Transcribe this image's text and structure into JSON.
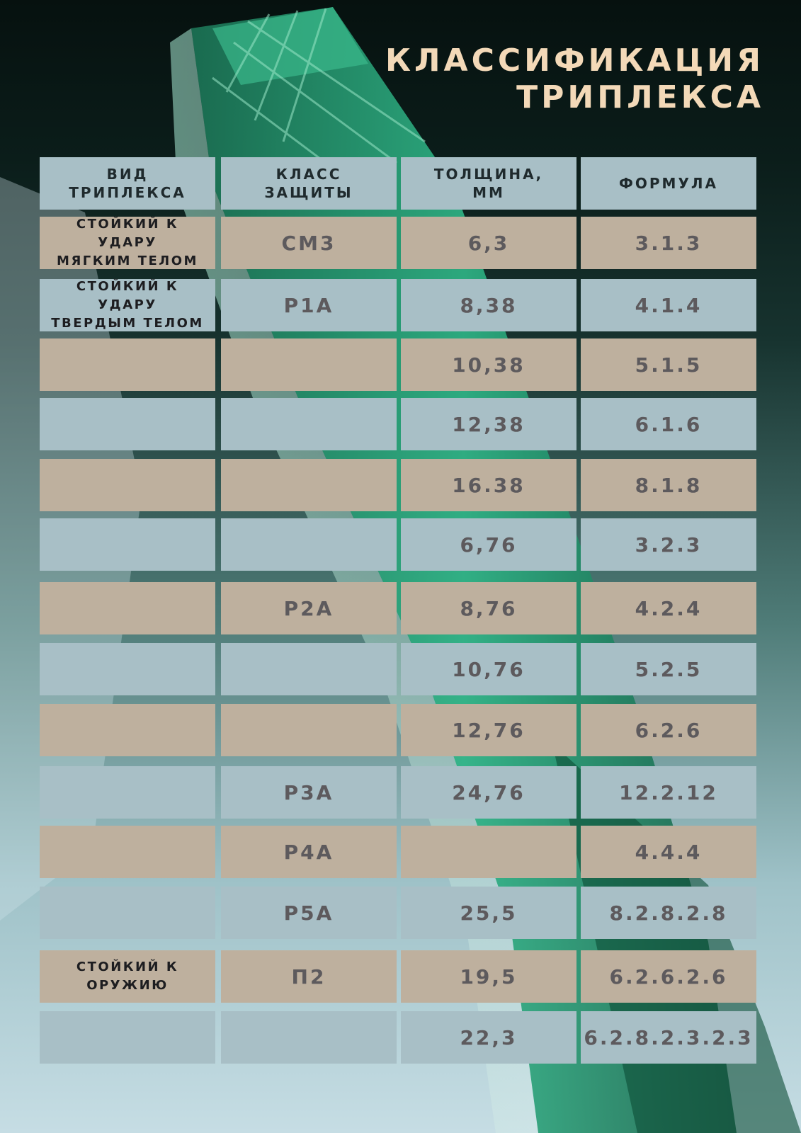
{
  "title": {
    "line1": "КЛАССИФИКАЦИЯ",
    "line2": "ТРИПЛЕКСА"
  },
  "headers": [
    "ВИД\nТРИПЛЕКСА",
    "КЛАСС\nЗАЩИТЫ",
    "ТОЛЩИНА,\nММ",
    "ФОРМУЛА"
  ],
  "rows": [
    {
      "type": "СТОЙКИЙ К УДАРУ\nМЯГКИМ ТЕЛОМ",
      "class": "СМ3",
      "thickness": "6,3",
      "formula": "3.1.3"
    },
    {
      "type": "СТОЙКИЙ К УДАРУ\nТВЕРДЫМ ТЕЛОМ",
      "class": "P1A",
      "thickness": "8,38",
      "formula": "4.1.4"
    },
    {
      "type": "",
      "class": "",
      "thickness": "10,38",
      "formula": "5.1.5"
    },
    {
      "type": "",
      "class": "",
      "thickness": "12,38",
      "formula": "6.1.6"
    },
    {
      "type": "",
      "class": "",
      "thickness": "16.38",
      "formula": "8.1.8"
    },
    {
      "type": "",
      "class": "",
      "thickness": "6,76",
      "formula": "3.2.3"
    },
    {
      "type": "",
      "class": "P2A",
      "thickness": "8,76",
      "formula": "4.2.4"
    },
    {
      "type": "",
      "class": "",
      "thickness": "10,76",
      "formula": "5.2.5"
    },
    {
      "type": "",
      "class": "",
      "thickness": "12,76",
      "formula": "6.2.6"
    },
    {
      "type": "",
      "class": "P3A",
      "thickness": "24,76",
      "formula": "12.2.12"
    },
    {
      "type": "",
      "class": "P4A",
      "thickness": "",
      "formula": "4.4.4"
    },
    {
      "type": "",
      "class": "P5A",
      "thickness": "25,5",
      "formula": "8.2.8.2.8"
    },
    {
      "type": "СТОЙКИЙ К\nОРУЖИЮ",
      "class": "П2",
      "thickness": "19,5",
      "formula": "6.2.6.2.6"
    },
    {
      "type": "",
      "class": "",
      "thickness": "22,3",
      "formula": "6.2.8.2.3.2.3"
    }
  ],
  "colors": {
    "tan": "#beb09e",
    "blue": "#a8bfc6",
    "title": "#f3d9b8"
  }
}
